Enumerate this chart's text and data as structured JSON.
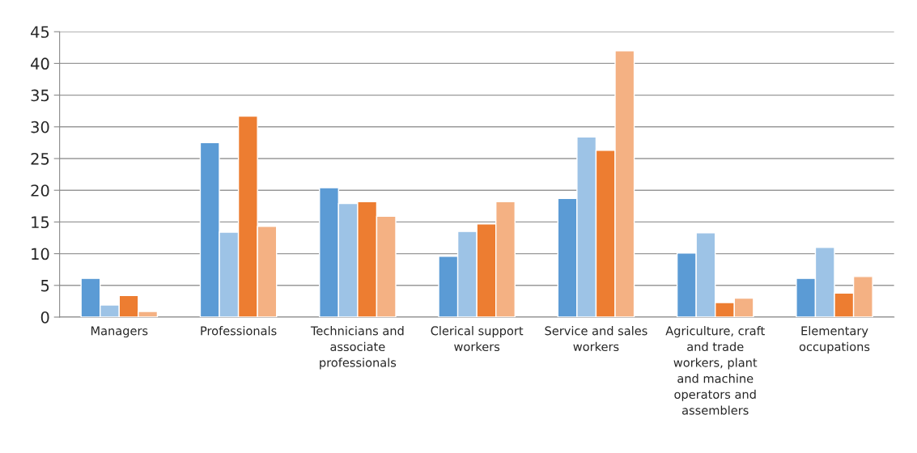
{
  "chart_data": {
    "type": "bar",
    "categories": [
      "Managers",
      "Professionals",
      "Technicians and\nassociate\nprofessionals",
      "Clerical support\nworkers",
      "Service and sales\nworkers",
      "Agriculture, craft\nand trade\nworkers, plant\nand machine\noperators and\nassemblers",
      "Elementary\noccupations"
    ],
    "series": [
      {
        "color": "#5b9bd5",
        "values": [
          6.1,
          27.5,
          20.4,
          9.6,
          18.7,
          10.1,
          6.1
        ]
      },
      {
        "color": "#9dc3e6",
        "values": [
          1.9,
          13.4,
          17.9,
          13.5,
          28.4,
          13.3,
          11.0
        ]
      },
      {
        "color": "#ed7d31",
        "values": [
          3.4,
          31.7,
          18.2,
          14.7,
          26.3,
          2.3,
          3.8
        ]
      },
      {
        "color": "#f4b183",
        "values": [
          0.9,
          14.3,
          15.9,
          18.2,
          42.0,
          3.0,
          6.4
        ]
      }
    ],
    "ylim": [
      0,
      45
    ],
    "yticks": [
      0,
      5,
      10,
      15,
      20,
      25,
      30,
      35,
      40,
      45
    ],
    "grid": "y"
  }
}
